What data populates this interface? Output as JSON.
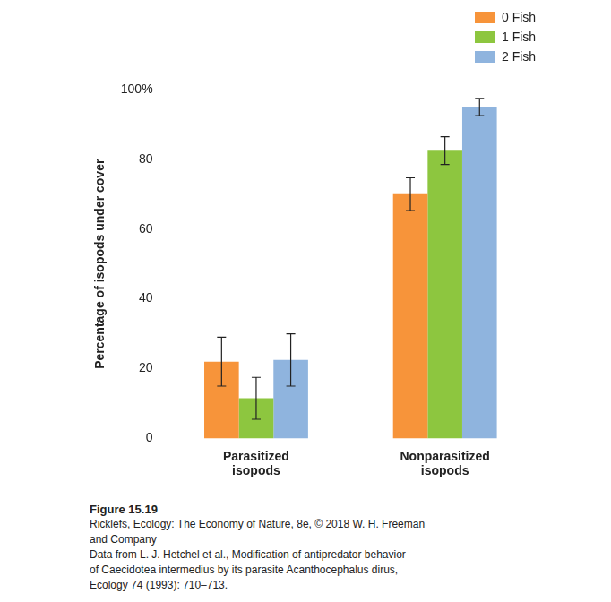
{
  "chart_data": {
    "type": "bar",
    "categories": [
      "Parasitized isopods",
      "Nonparasitized isopods"
    ],
    "series": [
      {
        "name": "0 Fish",
        "color": "#f7943a",
        "values": [
          22,
          70
        ],
        "errors": [
          7,
          4.7
        ]
      },
      {
        "name": "1 Fish",
        "color": "#8dc63f",
        "values": [
          11.5,
          82.5
        ],
        "errors": [
          6,
          4
        ]
      },
      {
        "name": "2 Fish",
        "color": "#8fb4de",
        "values": [
          22.5,
          95
        ],
        "errors": [
          7.5,
          2.5
        ]
      }
    ],
    "y_label": "Percentage of isopods under cover",
    "ylim": [
      0,
      100
    ],
    "yticks": [
      0,
      20,
      40,
      60,
      80,
      {
        "value": 100,
        "label": "100%"
      }
    ],
    "grid": false,
    "legend": "top-right",
    "caption": {
      "figure": "Figure 15.19",
      "lines": [
        "Ricklefs, Ecology: The Economy of Nature, 8e, © 2018 W. H. Freeman",
        "and Company",
        "Data from L. J. Hetchel et al., Modification of antipredator behavior",
        "of Caecidotea intermedius by its parasite Acanthocephalus dirus,",
        "Ecology 74 (1993): 710–713."
      ]
    }
  }
}
